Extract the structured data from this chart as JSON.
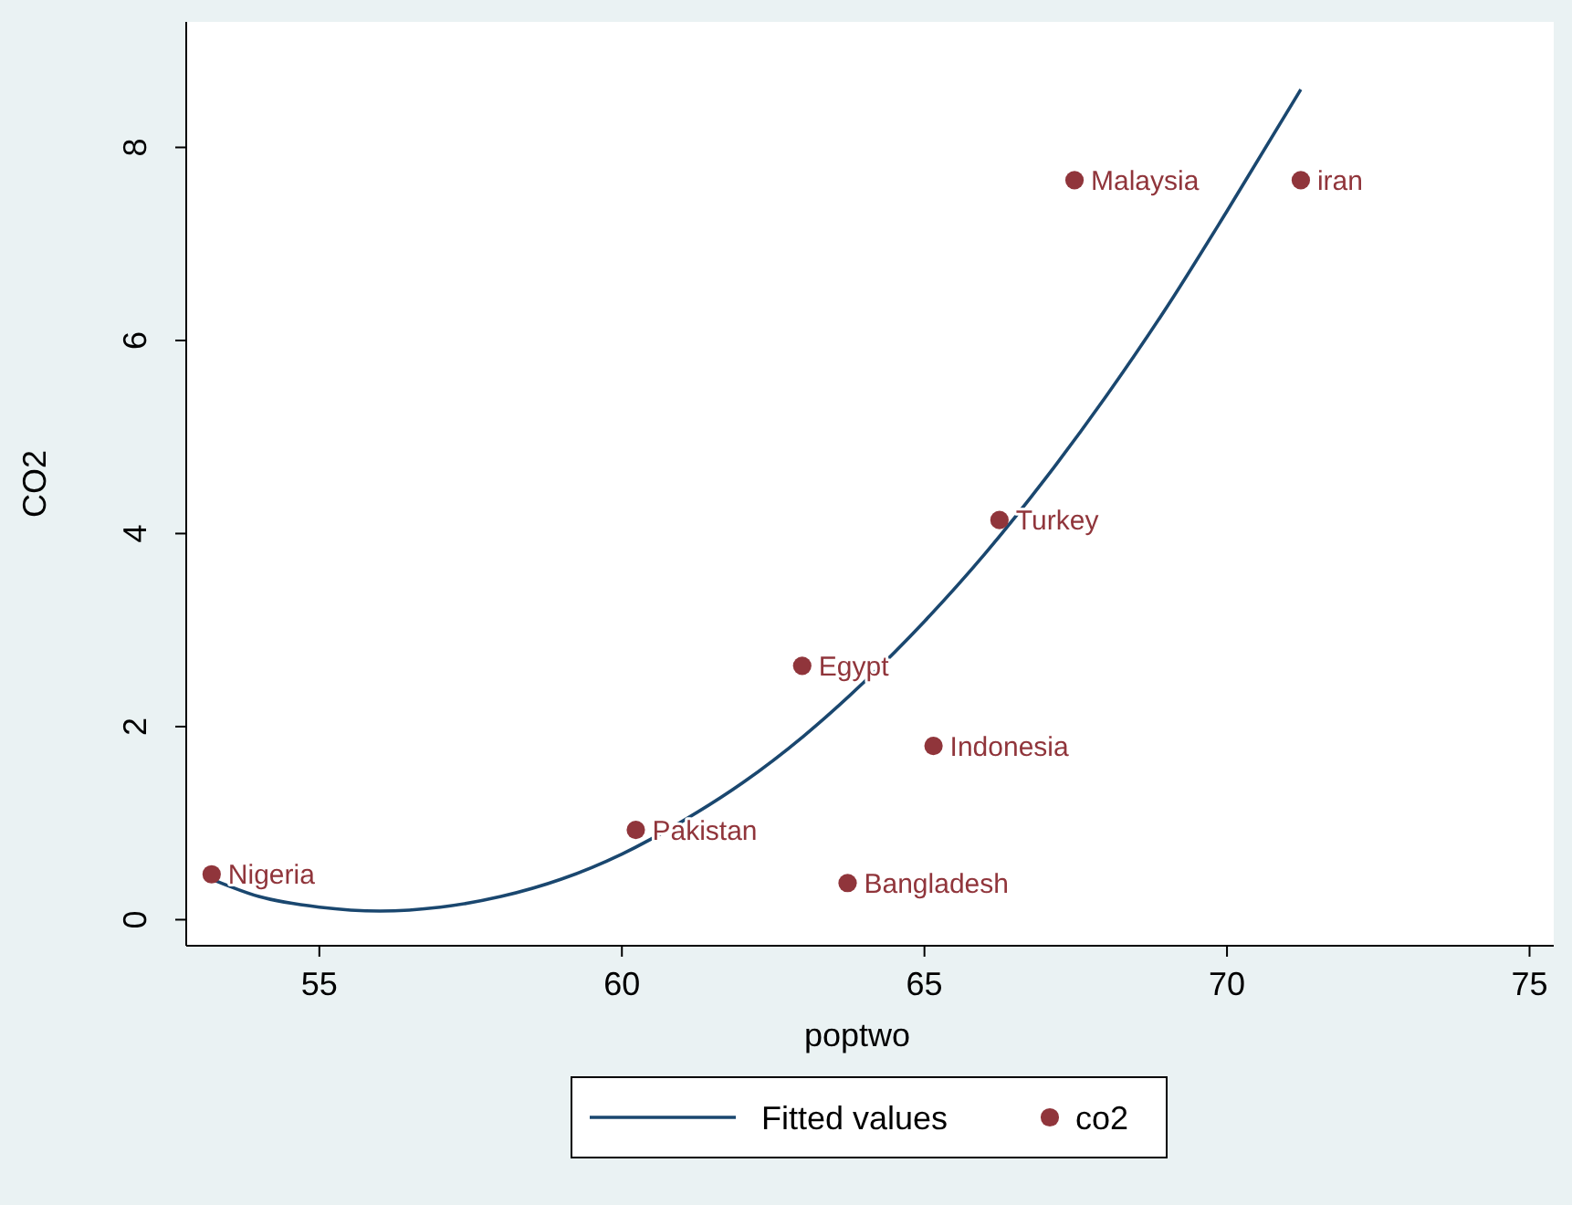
{
  "chart_data": {
    "type": "scatter",
    "xlabel": "poptwo",
    "ylabel": "CO2",
    "xlim": [
      52.8,
      75.4
    ],
    "ylim": [
      -0.27,
      9.3
    ],
    "xticks": [
      55,
      60,
      65,
      70,
      75
    ],
    "yticks": [
      0,
      2,
      4,
      6,
      8
    ],
    "legend": "bottom",
    "series": [
      {
        "name": "Fitted values",
        "type": "line",
        "color": "#1a476f",
        "marker": "none",
        "line_style": "solid",
        "x": [
          53.22,
          54,
          55,
          56,
          57,
          58,
          59,
          60,
          61,
          62,
          63,
          64,
          65,
          66,
          67,
          68,
          69,
          70,
          71.22
        ],
        "values": [
          0.42,
          0.24,
          0.13,
          0.09,
          0.13,
          0.24,
          0.42,
          0.68,
          1.02,
          1.42,
          1.9,
          2.46,
          3.09,
          3.79,
          4.57,
          5.42,
          6.34,
          7.34,
          8.6
        ]
      },
      {
        "name": "co2",
        "color": "#90353b",
        "marker": "circle",
        "x": [
          53.22,
          60.23,
          62.98,
          63.73,
          65.15,
          66.24,
          67.48,
          71.22
        ],
        "values": [
          0.47,
          0.93,
          2.63,
          0.38,
          1.8,
          4.14,
          7.66,
          7.66
        ]
      }
    ],
    "annotations": [
      {
        "text": "Nigeria",
        "x": 53.22,
        "y": 0.47
      },
      {
        "text": "Pakistan",
        "x": 60.23,
        "y": 0.93
      },
      {
        "text": "Egypt",
        "x": 62.98,
        "y": 2.63
      },
      {
        "text": "Bangladesh",
        "x": 63.73,
        "y": 0.38
      },
      {
        "text": "Indonesia",
        "x": 65.15,
        "y": 1.8
      },
      {
        "text": "Turkey",
        "x": 66.24,
        "y": 4.14
      },
      {
        "text": "Malaysia",
        "x": 67.48,
        "y": 7.66
      },
      {
        "text": "iran",
        "x": 71.22,
        "y": 7.66
      }
    ]
  }
}
